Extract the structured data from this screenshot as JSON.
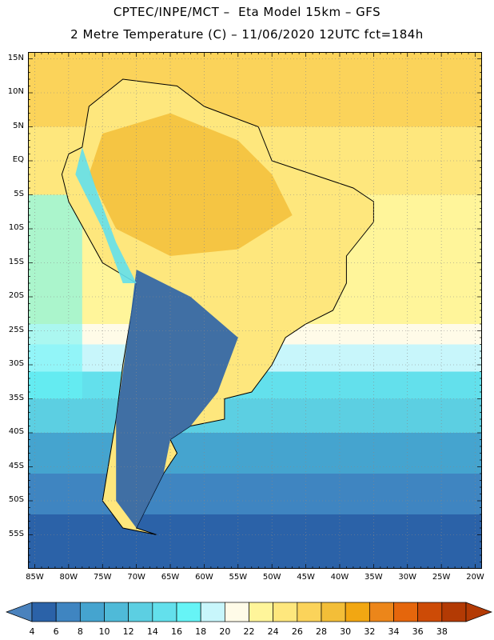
{
  "header": {
    "line1": "CPTEC/INPE/MCT –  Eta Model 15km – GFS",
    "line2": "2 Metre Temperature (C) – 11/06/2020 12UTC fct=184h"
  },
  "axes": {
    "lat_labels": [
      "15N",
      "10N",
      "5N",
      "EQ",
      "5S",
      "10S",
      "15S",
      "20S",
      "25S",
      "30S",
      "35S",
      "40S",
      "45S",
      "50S",
      "55S"
    ],
    "lat_values": [
      15,
      10,
      5,
      0,
      -5,
      -10,
      -15,
      -20,
      -25,
      -30,
      -35,
      -40,
      -45,
      -50,
      -55
    ],
    "lon_labels": [
      "85W",
      "80W",
      "75W",
      "70W",
      "65W",
      "60W",
      "55W",
      "50W",
      "45W",
      "40W",
      "35W",
      "30W",
      "25W",
      "20W"
    ],
    "lon_values": [
      -85,
      -80,
      -75,
      -70,
      -65,
      -60,
      -55,
      -50,
      -45,
      -40,
      -35,
      -30,
      -25,
      -20
    ],
    "lat_range": [
      -60,
      16
    ],
    "lon_range": [
      -86,
      -19
    ],
    "grid": "dotted"
  },
  "colorbar": {
    "ticks": [
      "4",
      "6",
      "8",
      "10",
      "12",
      "14",
      "16",
      "18",
      "20",
      "22",
      "24",
      "26",
      "28",
      "30",
      "32",
      "34",
      "36",
      "38"
    ],
    "colors": [
      "#2b62a8",
      "#3f85c1",
      "#45a4cf",
      "#4fbad8",
      "#5ccfe2",
      "#63e0ec",
      "#66f4f6",
      "#c8f6fb",
      "#fffbe8",
      "#fff59a",
      "#fee77d",
      "#fbd35a",
      "#f3be38",
      "#f2a712",
      "#ec861a",
      "#e5660c",
      "#cd4b06",
      "#b33a04"
    ],
    "under_color": "#4a82bd",
    "over_color": "#b33a04"
  },
  "palette": {
    "land_border": "#000000",
    "grid_color": "#888888"
  }
}
